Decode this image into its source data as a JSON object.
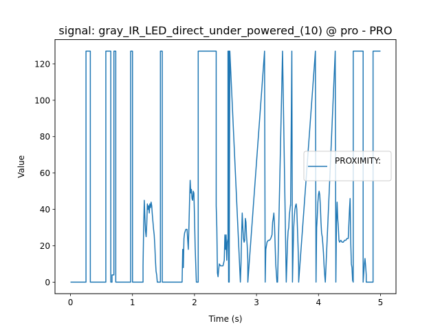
{
  "chart_data": {
    "type": "line",
    "title": "signal: gray_IR_LED_direct_under_powered_(10) @ pro - PRO",
    "xlabel": "Time (s)",
    "ylabel": "Value",
    "xlim": [
      -0.25,
      5.25
    ],
    "ylim": [
      -6.35,
      133.35
    ],
    "xticks": [
      0,
      1,
      2,
      3,
      4,
      5
    ],
    "xtick_labels": [
      "0",
      "1",
      "2",
      "3",
      "4",
      "5"
    ],
    "yticks": [
      0,
      20,
      40,
      60,
      80,
      100,
      120
    ],
    "ytick_labels": [
      "0",
      "20",
      "40",
      "60",
      "80",
      "100",
      "120"
    ],
    "grid": false,
    "legend_position": "center-right",
    "series": [
      {
        "name": "PROXIMITY:",
        "color": "#1f77b4",
        "x": [
          0,
          0.25,
          0.25,
          0.32,
          0.32,
          0.57,
          0.57,
          0.65,
          0.65,
          0.67,
          0.67,
          0.7,
          0.7,
          0.73,
          0.73,
          0.97,
          0.97,
          1.0,
          1.0,
          1.17,
          1.17,
          1.18,
          1.19,
          1.2,
          1.21,
          1.22,
          1.23,
          1.24,
          1.25,
          1.26,
          1.27,
          1.28,
          1.29,
          1.3,
          1.31,
          1.32,
          1.33,
          1.34,
          1.35,
          1.36,
          1.37,
          1.38,
          1.39,
          1.4,
          1.41,
          1.42,
          1.43,
          1.44,
          1.45,
          1.45,
          1.48,
          1.48,
          1.8,
          1.8,
          1.81,
          1.82,
          1.83,
          1.84,
          1.86,
          1.88,
          1.9,
          1.91,
          1.92,
          1.93,
          1.94,
          1.95,
          1.96,
          1.97,
          1.98,
          1.99,
          2.0,
          2.01,
          2.02,
          2.03,
          2.04,
          2.05,
          2.06,
          2.06,
          2.35,
          2.35,
          2.36,
          2.37,
          2.38,
          2.39,
          2.4,
          2.42,
          2.44,
          2.46,
          2.48,
          2.49,
          2.5,
          2.51,
          2.52,
          2.53,
          2.54,
          2.54,
          2.55,
          2.55,
          2.56,
          2.56,
          2.57,
          2.57,
          2.74,
          2.74,
          2.75,
          2.76,
          2.77,
          2.78,
          2.79,
          2.8,
          2.81,
          2.82,
          2.83,
          2.84,
          2.85,
          2.86,
          2.86,
          3.13,
          3.13,
          3.14,
          3.15,
          3.17,
          3.19,
          3.21,
          3.23,
          3.25,
          3.26,
          3.27,
          3.28,
          3.29,
          3.3,
          3.31,
          3.32,
          3.33,
          3.34,
          3.34,
          3.42,
          3.42,
          3.48,
          3.48,
          3.49,
          3.5,
          3.51,
          3.52,
          3.53,
          3.54,
          3.55,
          3.55,
          3.57,
          3.57,
          3.58,
          3.59,
          3.6,
          3.61,
          3.62,
          3.63,
          3.64,
          3.65,
          3.66,
          3.67,
          3.68,
          3.68,
          3.95,
          3.95,
          3.96,
          3.97,
          3.98,
          3.99,
          4.0,
          4.01,
          4.02,
          4.03,
          4.04,
          4.05,
          4.06,
          4.07,
          4.08,
          4.09,
          4.1,
          4.11,
          4.11,
          4.27,
          4.27,
          4.28,
          4.29,
          4.3,
          4.31,
          4.32,
          4.33,
          4.34,
          4.36,
          4.38,
          4.4,
          4.42,
          4.44,
          4.46,
          4.48,
          4.5,
          4.51,
          4.52,
          4.53,
          4.54,
          4.55,
          4.56,
          4.56,
          4.72,
          4.72,
          4.73,
          4.74,
          4.75,
          4.76,
          4.77,
          4.77,
          4.88,
          4.88,
          5.0
        ],
        "y": [
          0,
          0,
          127,
          127,
          0,
          0,
          127,
          127,
          0,
          0,
          4,
          4,
          127,
          127,
          0,
          0,
          127,
          127,
          0,
          0,
          9,
          30,
          45,
          36,
          28,
          25,
          32,
          43,
          40,
          42,
          38,
          43,
          41,
          44,
          42,
          37,
          33,
          29,
          26,
          20,
          12,
          6,
          4,
          0,
          0,
          0,
          0,
          0,
          0,
          127,
          127,
          0,
          0,
          0,
          18,
          8,
          24,
          27,
          29,
          29,
          18,
          30,
          44,
          56,
          49,
          51,
          46,
          45,
          50,
          49,
          36,
          20,
          10,
          0,
          0,
          0,
          0,
          127,
          127,
          42,
          30,
          5,
          3,
          7,
          10,
          9,
          9,
          9,
          12,
          26,
          18,
          26,
          12,
          22,
          24,
          127,
          0,
          127,
          127,
          0,
          127,
          127,
          0,
          0,
          10,
          26,
          38,
          30,
          24,
          22,
          23,
          35,
          33,
          25,
          20,
          12,
          0,
          127,
          127,
          0,
          18,
          22,
          23,
          23,
          24,
          26,
          33,
          35,
          38,
          32,
          21,
          10,
          5,
          0,
          0,
          0,
          127,
          127,
          0,
          0,
          10,
          22,
          28,
          30,
          37,
          40,
          43,
          42,
          127,
          127,
          0,
          16,
          30,
          36,
          40,
          42,
          43,
          40,
          30,
          20,
          8,
          0,
          127,
          127,
          0,
          30,
          36,
          44,
          48,
          50,
          48,
          42,
          33,
          27,
          25,
          21,
          16,
          9,
          4,
          0,
          0,
          127,
          127,
          0,
          33,
          44,
          35,
          30,
          23,
          22,
          23,
          22,
          22,
          23,
          23,
          24,
          24,
          40,
          46,
          22,
          10,
          8,
          1,
          0,
          127,
          127,
          0,
          5,
          10,
          13,
          9,
          4,
          0,
          0,
          127,
          127
        ]
      }
    ]
  }
}
